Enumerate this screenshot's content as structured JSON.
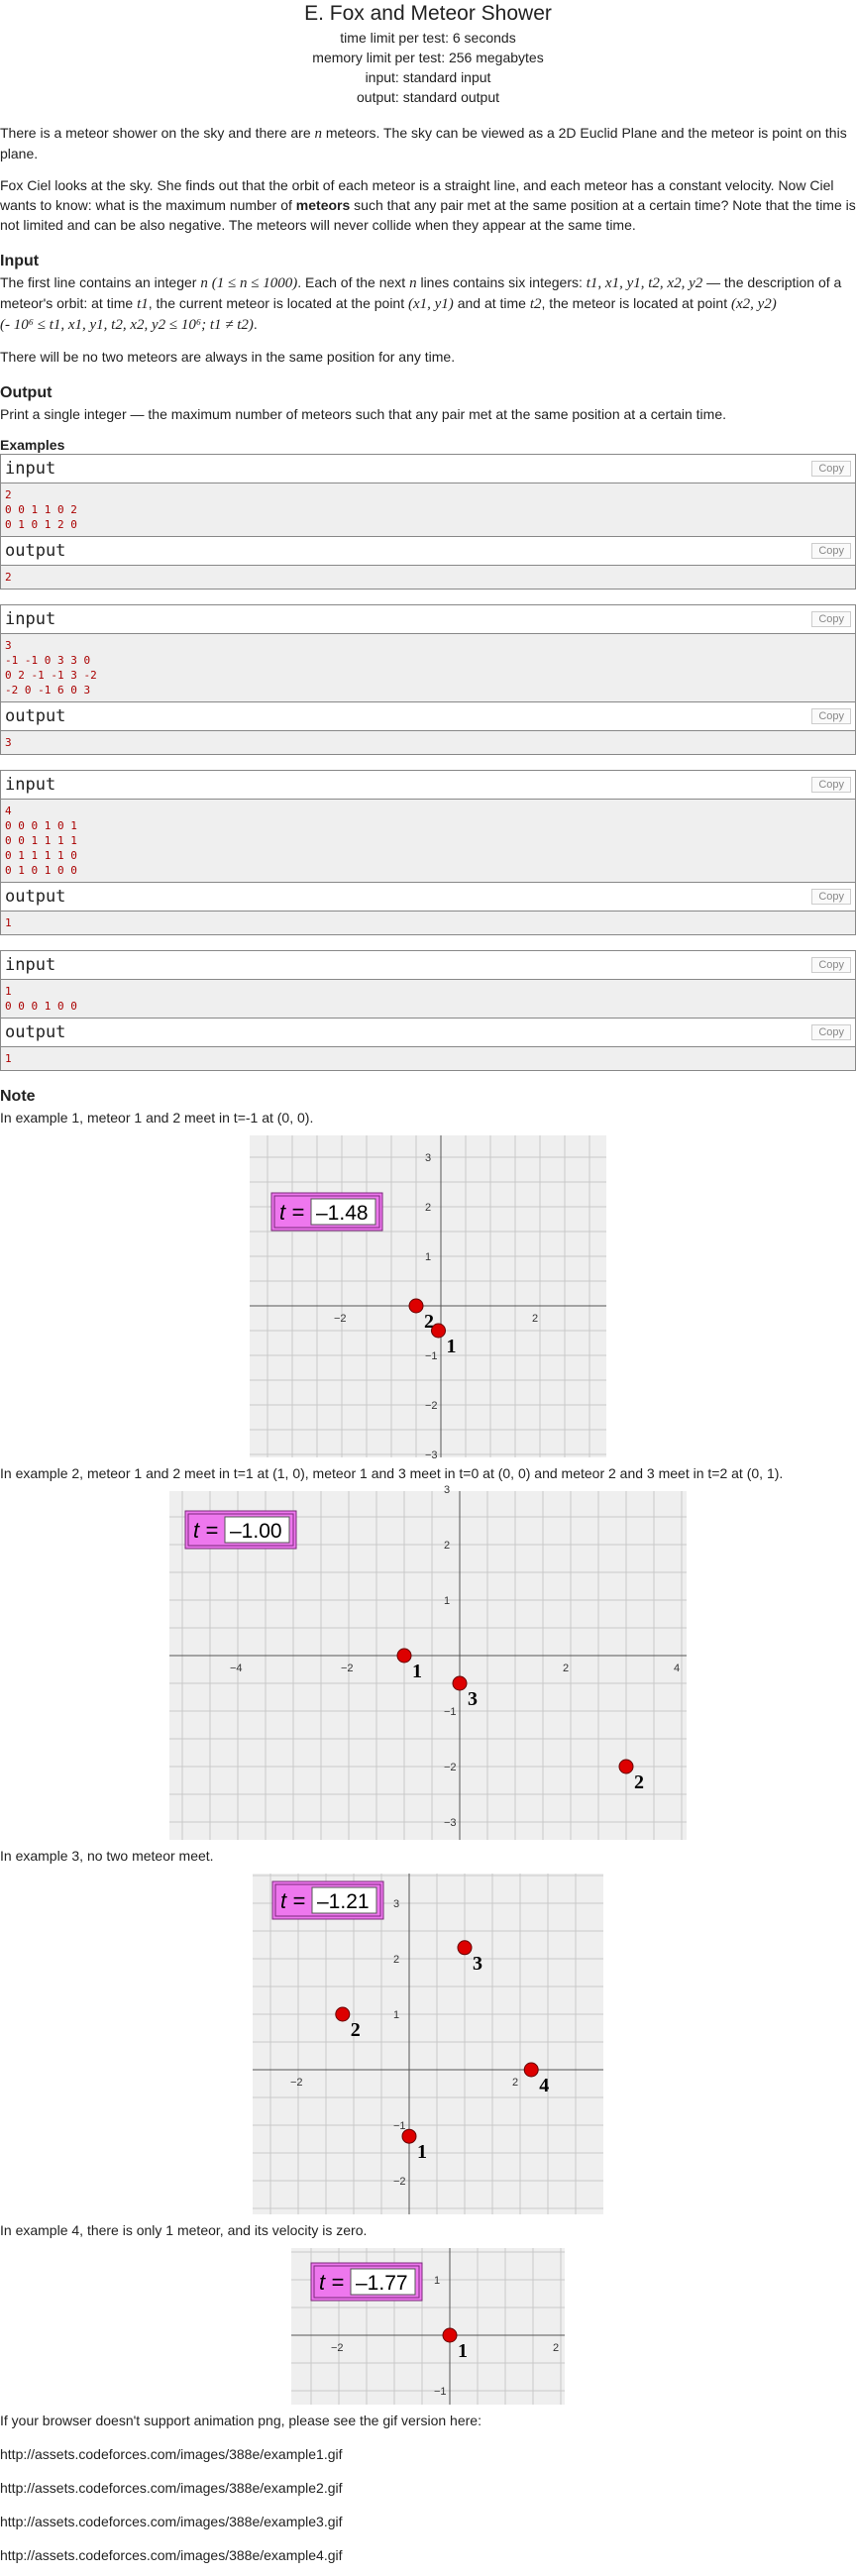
{
  "header": {
    "title": "E. Fox and Meteor Shower",
    "time_limit": "time limit per test: 6 seconds",
    "memory_limit": "memory limit per test: 256 megabytes",
    "input": "input: standard input",
    "output": "output: standard output"
  },
  "statement": {
    "p1_a": "There is a meteor shower on the sky and there are ",
    "p1_n": "n",
    "p1_b": " meteors. The sky can be viewed as a 2D Euclid Plane and the meteor is point on this plane.",
    "p2_a": "Fox Ciel looks at the sky. She finds out that the orbit of each meteor is a straight line, and each meteor has a constant velocity. Now Ciel wants to know: what is the maximum number of ",
    "p2_bold": "meteors",
    "p2_b": " such that any pair met at the same position at a certain time? Note that the time is not limited and can be also negative. The meteors will never collide when they appear at the same time."
  },
  "input_section": {
    "title": "Input",
    "p1_a": "The first line contains an integer ",
    "p1_m1": "n",
    "p1_m2": "(1 ≤ n ≤ 1000)",
    "p1_b": ". Each of the next ",
    "p1_m3": "n",
    "p1_c": " lines contains six integers: ",
    "p1_m4": "t1, x1, y1, t2, x2, y2",
    "p1_d": " — the description of a meteor's orbit: at time ",
    "p1_m5": "t1",
    "p1_e": ", the current meteor is located at the point ",
    "p1_m6": "(x1, y1)",
    "p1_f": " and at time ",
    "p1_m7": "t2",
    "p1_g": ", the meteor is located at point ",
    "p1_m8": "(x2, y2)",
    "p1_m9": "(- 10⁶ ≤ t1, x1, y1, t2, x2, y2 ≤ 10⁶; t1 ≠ t2)",
    "p1_h": ".",
    "p2": "There will be no two meteors are always in the same position for any time."
  },
  "output_section": {
    "title": "Output",
    "p1": "Print a single integer — the maximum number of meteors such that any pair met at the same position at a certain time."
  },
  "examples": {
    "title": "Examples",
    "input_label": "input",
    "output_label": "output",
    "copy_label": "Copy",
    "items": [
      {
        "input": "2\n0 0 1 1 0 2\n0 1 0 1 2 0",
        "output": "2"
      },
      {
        "input": "3\n-1 -1 0 3 3 0\n0 2 -1 -1 3 -2\n-2 0 -1 6 0 3",
        "output": "3"
      },
      {
        "input": "4\n0 0 0 1 0 1\n0 0 1 1 1 1\n0 1 1 1 1 0\n0 1 0 1 0 0",
        "output": "1"
      },
      {
        "input": "1\n0 0 0 1 0 0",
        "output": "1"
      }
    ]
  },
  "note": {
    "title": "Note",
    "n1": "In example 1, meteor 1 and 2 meet in t=-1 at (0, 0).",
    "n2": "In example 2, meteor 1 and 2 meet in t=1 at (1, 0), meteor 1 and 3 meet in t=0 at (0, 0) and meteor 2 and 3 meet in t=2 at (0, 1).",
    "n3": "In example 3, no two meteor meet.",
    "n4": "In example 4, there is only 1 meteor, and its velocity is zero.",
    "fallback": "If your browser doesn't support animation png, please see the gif version here:"
  },
  "figures": [
    {
      "t_label": "t =",
      "t_value": "–1.48",
      "xticks": [
        "−2",
        "2"
      ],
      "yticks": [
        "3",
        "2",
        "1",
        "−1",
        "−2",
        "−3"
      ],
      "points": [
        {
          "label": "2",
          "x": -0.5,
          "y": 0
        },
        {
          "label": "1",
          "x": -0.05,
          "y": -0.5
        }
      ]
    },
    {
      "t_label": "t =",
      "t_value": "–1.00",
      "xticks": [
        "−4",
        "−2",
        "2",
        "4"
      ],
      "yticks": [
        "3",
        "2",
        "1",
        "−1",
        "−2",
        "−3"
      ],
      "points": [
        {
          "label": "1",
          "x": -1,
          "y": 0
        },
        {
          "label": "3",
          "x": 0,
          "y": -0.5
        },
        {
          "label": "2",
          "x": 3,
          "y": -2
        }
      ]
    },
    {
      "t_label": "t =",
      "t_value": "–1.21",
      "xticks": [
        "−2",
        "2"
      ],
      "yticks": [
        "3",
        "2",
        "1",
        "−1",
        "−2"
      ],
      "points": [
        {
          "label": "3",
          "x": 1,
          "y": 2.2
        },
        {
          "label": "2",
          "x": -1.2,
          "y": 1
        },
        {
          "label": "4",
          "x": 2.2,
          "y": 0
        },
        {
          "label": "1",
          "x": 0,
          "y": -1.2
        }
      ]
    },
    {
      "t_label": "t =",
      "t_value": "–1.77",
      "xticks": [
        "−2",
        "2"
      ],
      "yticks": [
        "1",
        "−1"
      ],
      "points": [
        {
          "label": "1",
          "x": 0,
          "y": 0
        }
      ]
    }
  ],
  "links": [
    "http://assets.codeforces.com/images/388e/example1.gif",
    "http://assets.codeforces.com/images/388e/example2.gif",
    "http://assets.codeforces.com/images/388e/example3.gif",
    "http://assets.codeforces.com/images/388e/example4.gif"
  ],
  "colors": {
    "grid_bg": "#efefef",
    "point": "#dd0000",
    "badge": "#ee77ee"
  }
}
